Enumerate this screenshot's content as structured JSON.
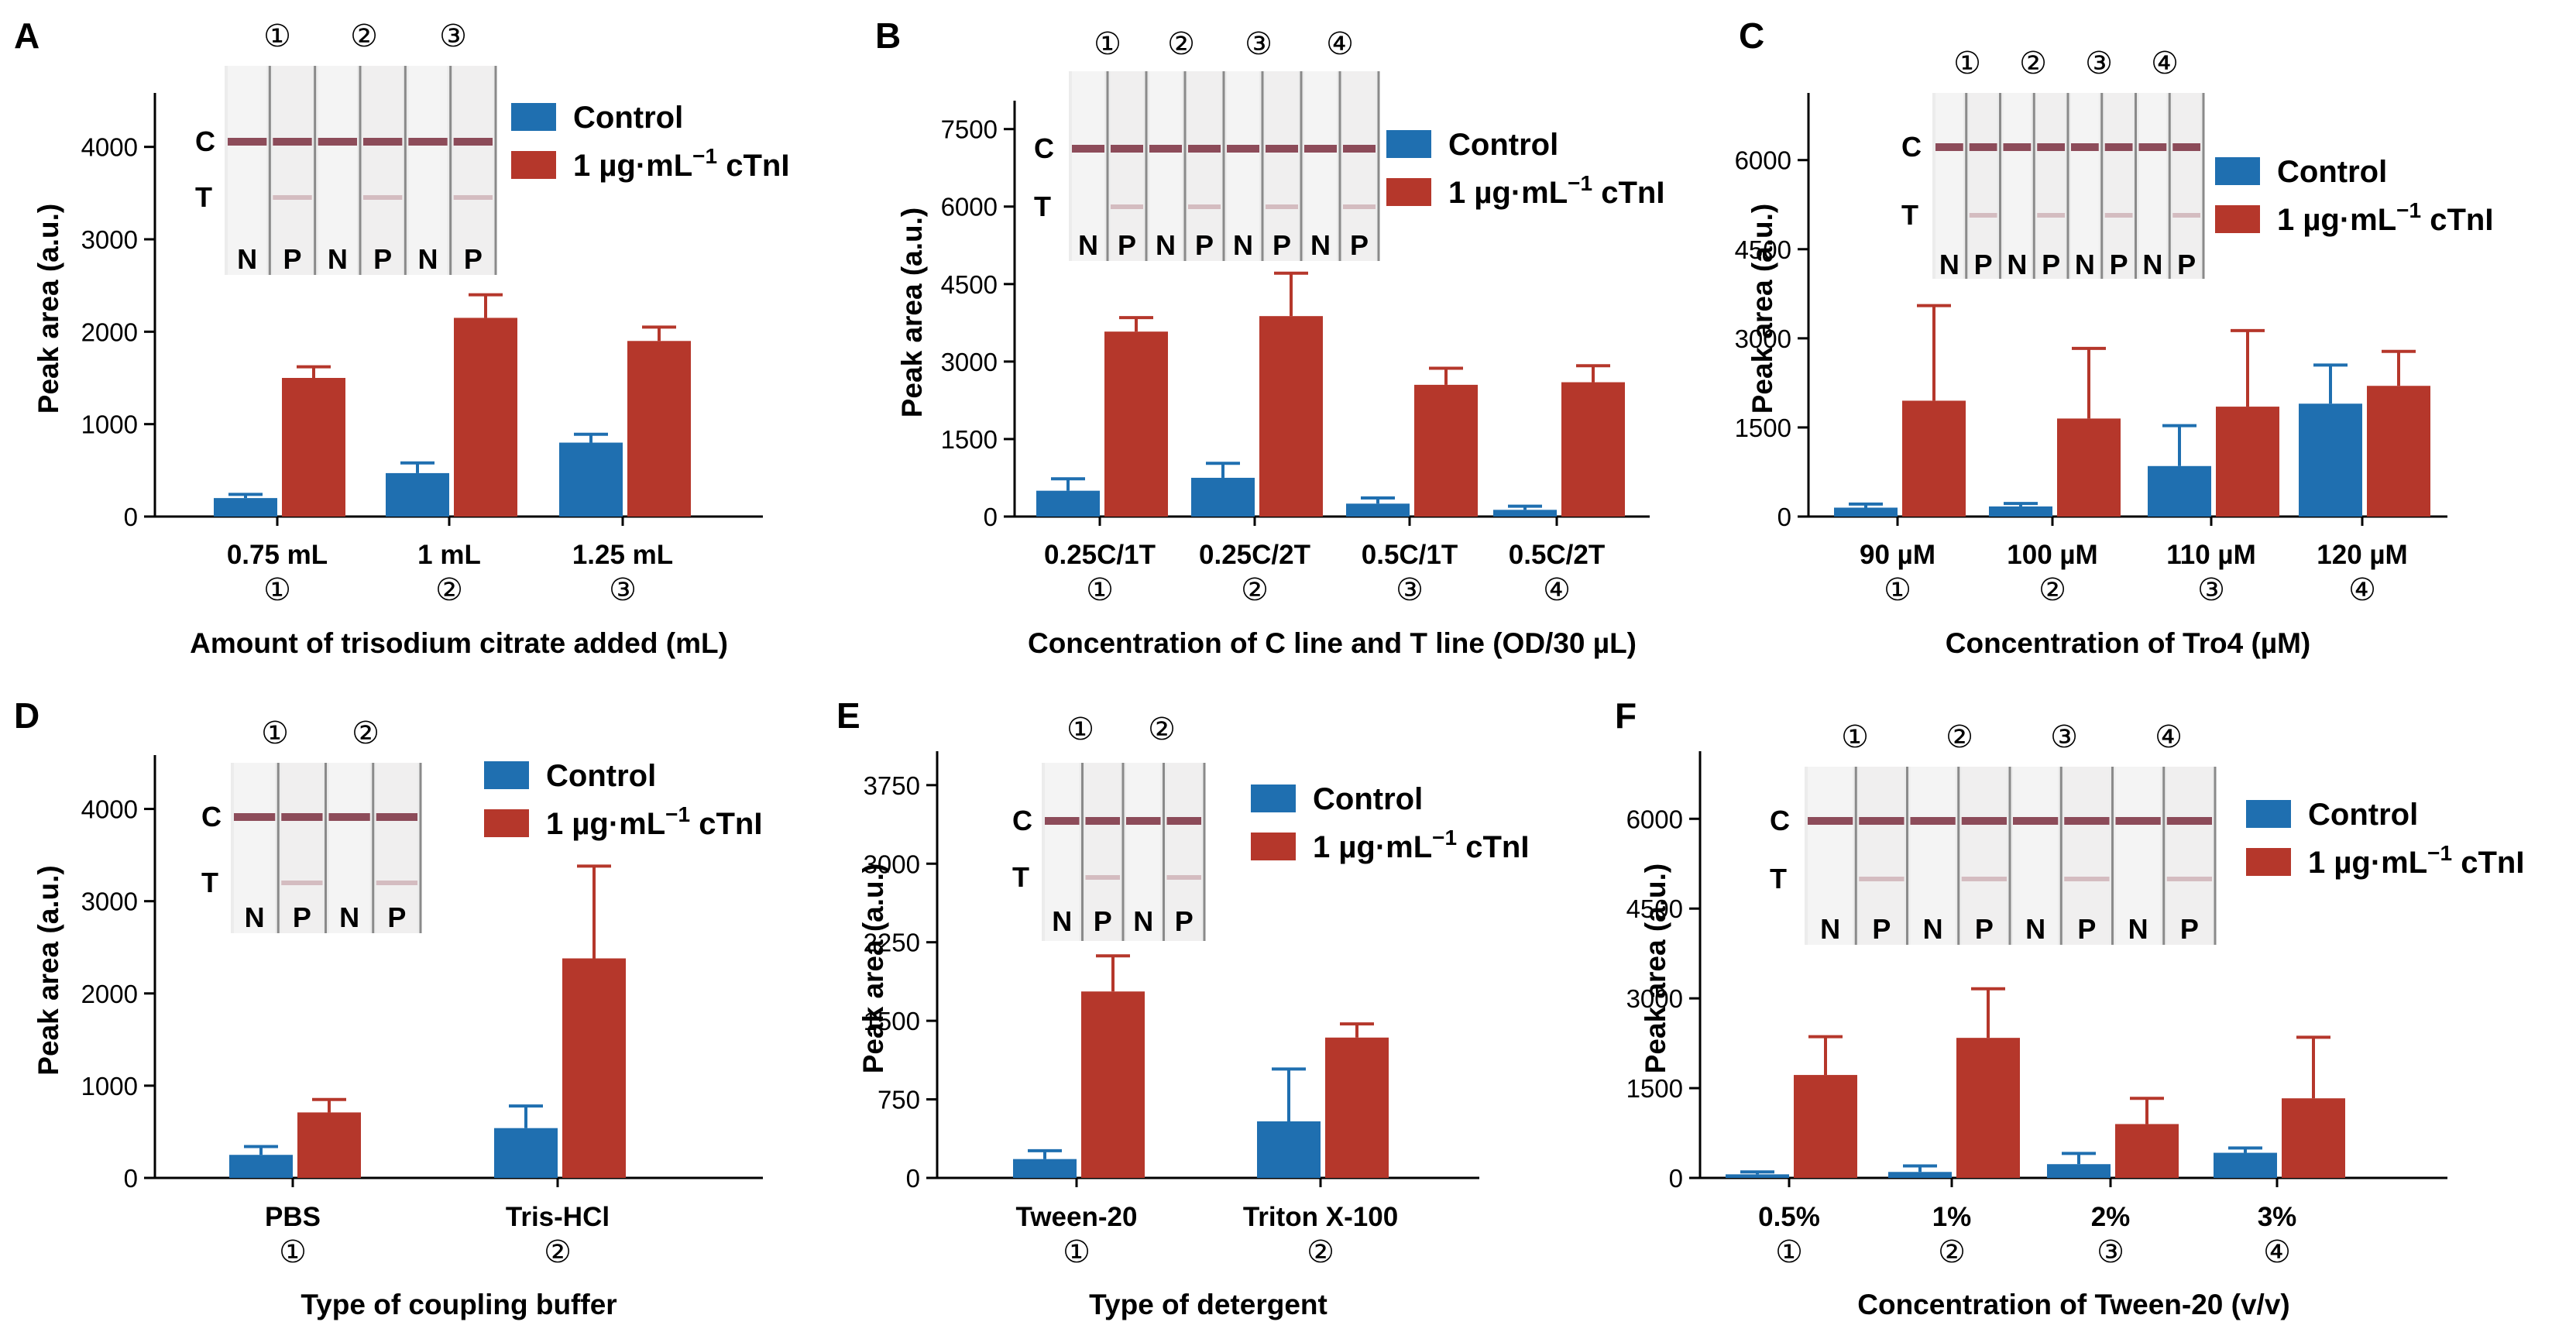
{
  "colors": {
    "control": "#1f6fb0",
    "ctni": "#b5372b",
    "axis": "#000000"
  },
  "legend": {
    "control": "Control",
    "ctni_prefix": "1 µg·mL",
    "ctni_sup": "−1",
    "ctni_suffix": " cTnI"
  },
  "strip_labels": {
    "c": "C",
    "t": "T",
    "n": "N",
    "p": "P"
  },
  "y_axis_label": "Peak area (a.u.)",
  "chart_data": [
    {
      "panel": "A",
      "type": "bar",
      "title": "",
      "xlabel": "Amount of trisodium citrate added (mL)",
      "ylabel": "Peak area (a.u.)",
      "ylim": [
        0,
        4500
      ],
      "yticks": [
        0,
        1000,
        2000,
        3000,
        4000
      ],
      "categories": [
        "0.75 mL",
        "1 mL",
        "1.25 mL"
      ],
      "markers": [
        "①",
        "②",
        "③"
      ],
      "strip_markers": [
        "①",
        "②",
        "③"
      ],
      "series": [
        {
          "name": "Control",
          "values": [
            200,
            470,
            800
          ],
          "errors": [
            40,
            110,
            90
          ]
        },
        {
          "name": "1 µg·mL−1 cTnI",
          "values": [
            1500,
            2150,
            1900
          ],
          "errors": [
            120,
            250,
            150
          ]
        }
      ]
    },
    {
      "panel": "B",
      "type": "bar",
      "title": "",
      "xlabel": "Concentration of C line and T line (OD/30 µL)",
      "ylabel": "Peak area (a.u.)",
      "ylim": [
        0,
        7900
      ],
      "yticks": [
        0,
        1500,
        3000,
        4500,
        6000,
        7500
      ],
      "categories": [
        "0.25C/1T",
        "0.25C/2T",
        "0.5C/1T",
        "0.5C/2T"
      ],
      "markers": [
        "①",
        "②",
        "③",
        "④"
      ],
      "strip_markers": [
        "①",
        "②",
        "③",
        "④"
      ],
      "series": [
        {
          "name": "Control",
          "values": [
            500,
            750,
            250,
            130
          ],
          "errors": [
            230,
            280,
            110,
            70
          ]
        },
        {
          "name": "1 µg·mL−1 cTnI",
          "values": [
            3580,
            3880,
            2550,
            2600
          ],
          "errors": [
            270,
            830,
            320,
            320
          ]
        }
      ]
    },
    {
      "panel": "C",
      "type": "bar",
      "title": "",
      "xlabel": "Concentration of Tro4 (µM)",
      "ylabel": "Peak area (a.u.)",
      "ylim": [
        0,
        7000
      ],
      "yticks": [
        0,
        1500,
        3000,
        4500,
        6000
      ],
      "categories": [
        "90 µM",
        "100 µM",
        "110 µM",
        "120 µM"
      ],
      "markers": [
        "①",
        "②",
        "③",
        "④"
      ],
      "strip_markers": [
        "①",
        "②",
        "③",
        "④"
      ],
      "series": [
        {
          "name": "Control",
          "values": [
            150,
            170,
            850,
            1900
          ],
          "errors": [
            60,
            50,
            680,
            650
          ]
        },
        {
          "name": "1 µg·mL−1 cTnI",
          "values": [
            1950,
            1650,
            1850,
            2200
          ],
          "errors": [
            1600,
            1180,
            1280,
            580
          ]
        }
      ]
    },
    {
      "panel": "D",
      "type": "bar",
      "title": "",
      "xlabel": "Type of coupling buffer",
      "ylabel": "Peak area (a.u.)",
      "ylim": [
        0,
        4500
      ],
      "yticks": [
        0,
        1000,
        2000,
        3000,
        4000
      ],
      "categories": [
        "PBS",
        "Tris-HCl"
      ],
      "markers": [
        "①",
        "②"
      ],
      "strip_markers": [
        "①",
        "②"
      ],
      "series": [
        {
          "name": "Control",
          "values": [
            250,
            540
          ],
          "errors": [
            90,
            240
          ]
        },
        {
          "name": "1 µg·mL−1 cTnI",
          "values": [
            710,
            2380
          ],
          "errors": [
            140,
            1000
          ]
        }
      ]
    },
    {
      "panel": "E",
      "type": "bar",
      "title": "",
      "xlabel": "Type of detergent",
      "ylabel": "Peak area (a.u.)",
      "ylim": [
        0,
        4000
      ],
      "yticks": [
        0,
        750,
        1500,
        2250,
        3000,
        3750
      ],
      "categories": [
        "Tween-20",
        "Triton X-100"
      ],
      "markers": [
        "①",
        "②"
      ],
      "strip_markers": [
        "①",
        "②"
      ],
      "series": [
        {
          "name": "Control",
          "values": [
            180,
            540
          ],
          "errors": [
            80,
            500
          ]
        },
        {
          "name": "1 µg·mL−1 cTnI",
          "values": [
            1780,
            1340
          ],
          "errors": [
            340,
            130
          ]
        }
      ]
    },
    {
      "panel": "F",
      "type": "bar",
      "title": "",
      "xlabel": "Concentration of Tween-20 (v/v)",
      "ylabel": "Peak area (a.u.)",
      "ylim": [
        0,
        7000
      ],
      "yticks": [
        0,
        1500,
        3000,
        4500,
        6000
      ],
      "categories": [
        "0.5%",
        "1%",
        "2%",
        "3%"
      ],
      "markers": [
        "①",
        "②",
        "③",
        "④"
      ],
      "strip_markers": [
        "①",
        "②",
        "③",
        "④"
      ],
      "series": [
        {
          "name": "Control",
          "values": [
            60,
            100,
            230,
            420
          ],
          "errors": [
            40,
            100,
            180,
            80
          ]
        },
        {
          "name": "1 µg·mL−1 cTnI",
          "values": [
            1720,
            2340,
            900,
            1330
          ],
          "errors": [
            640,
            820,
            430,
            1020
          ]
        }
      ]
    }
  ]
}
